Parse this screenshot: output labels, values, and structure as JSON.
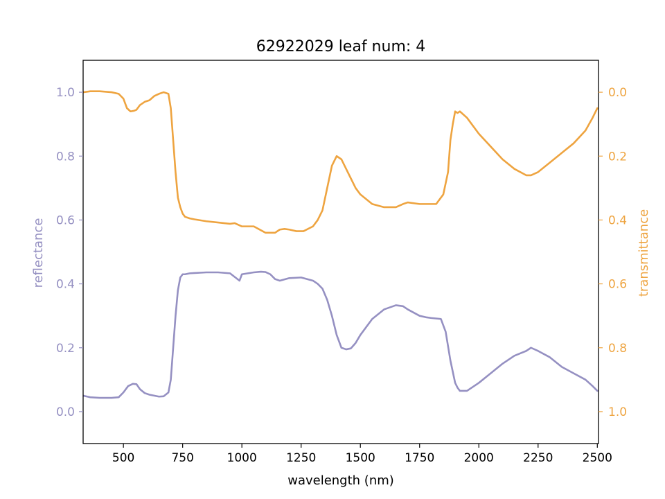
{
  "chart_data": {
    "type": "line",
    "title": "62922029 leaf num: 4",
    "xlabel": "wavelength (nm)",
    "ylabel_left": "reflectance",
    "ylabel_right": "transmittance",
    "xlim": [
      330,
      2505
    ],
    "ylim_left": [
      -0.1,
      1.1
    ],
    "ylim_right": [
      1.1,
      -0.1
    ],
    "xticks": [
      500,
      750,
      1000,
      1250,
      1500,
      1750,
      2000,
      2250,
      2500
    ],
    "yticks_left": [
      0.0,
      0.2,
      0.4,
      0.6,
      0.8,
      1.0
    ],
    "yticks_right": [
      0.0,
      0.2,
      0.4,
      0.6,
      0.8,
      1.0
    ],
    "colors": {
      "reflectance": "#9590c2",
      "transmittance": "#eea440"
    },
    "grid": false,
    "series": [
      {
        "axis": "left",
        "x": [
          330,
          360,
          400,
          450,
          480,
          500,
          520,
          540,
          555,
          570,
          590,
          610,
          630,
          650,
          670,
          690,
          700,
          710,
          720,
          730,
          740,
          750,
          760,
          780,
          800,
          850,
          900,
          950,
          990,
          1000,
          1050,
          1080,
          1100,
          1120,
          1140,
          1160,
          1180,
          1200,
          1250,
          1300,
          1320,
          1340,
          1360,
          1380,
          1400,
          1420,
          1440,
          1460,
          1480,
          1500,
          1550,
          1600,
          1650,
          1680,
          1700,
          1750,
          1780,
          1800,
          1840,
          1860,
          1880,
          1900,
          1910,
          1920,
          1950,
          2000,
          2050,
          2100,
          2150,
          2200,
          2220,
          2250,
          2300,
          2350,
          2400,
          2450,
          2480,
          2500
        ],
        "values": [
          0.05,
          0.045,
          0.043,
          0.043,
          0.045,
          0.06,
          0.08,
          0.087,
          0.086,
          0.07,
          0.058,
          0.053,
          0.05,
          0.047,
          0.048,
          0.06,
          0.1,
          0.2,
          0.3,
          0.38,
          0.42,
          0.43,
          0.43,
          0.433,
          0.434,
          0.436,
          0.436,
          0.433,
          0.41,
          0.43,
          0.436,
          0.438,
          0.437,
          0.43,
          0.415,
          0.41,
          0.414,
          0.418,
          0.42,
          0.41,
          0.4,
          0.385,
          0.35,
          0.3,
          0.24,
          0.2,
          0.195,
          0.198,
          0.215,
          0.24,
          0.29,
          0.32,
          0.333,
          0.33,
          0.32,
          0.3,
          0.295,
          0.293,
          0.29,
          0.25,
          0.16,
          0.09,
          0.075,
          0.065,
          0.065,
          0.09,
          0.12,
          0.15,
          0.175,
          0.19,
          0.2,
          0.19,
          0.17,
          0.14,
          0.12,
          0.1,
          0.08,
          0.065
        ]
      },
      {
        "axis": "right",
        "x": [
          330,
          360,
          400,
          450,
          480,
          500,
          515,
          530,
          545,
          555,
          570,
          590,
          610,
          630,
          650,
          670,
          690,
          700,
          710,
          720,
          730,
          740,
          750,
          760,
          780,
          800,
          850,
          900,
          950,
          970,
          1000,
          1050,
          1100,
          1140,
          1160,
          1180,
          1200,
          1230,
          1260,
          1300,
          1320,
          1340,
          1360,
          1380,
          1400,
          1420,
          1440,
          1460,
          1480,
          1500,
          1550,
          1600,
          1650,
          1680,
          1700,
          1750,
          1780,
          1820,
          1850,
          1870,
          1880,
          1890,
          1900,
          1910,
          1920,
          1950,
          2000,
          2050,
          2100,
          2150,
          2200,
          2220,
          2250,
          2300,
          2350,
          2400,
          2450,
          2480,
          2500
        ],
        "values": [
          0.0,
          -0.003,
          -0.003,
          0.0,
          0.005,
          0.02,
          0.05,
          0.06,
          0.058,
          0.055,
          0.04,
          0.03,
          0.025,
          0.012,
          0.005,
          0.0,
          0.005,
          0.05,
          0.15,
          0.25,
          0.33,
          0.36,
          0.38,
          0.39,
          0.395,
          0.398,
          0.404,
          0.408,
          0.412,
          0.41,
          0.42,
          0.42,
          0.44,
          0.44,
          0.43,
          0.428,
          0.43,
          0.435,
          0.435,
          0.42,
          0.4,
          0.37,
          0.3,
          0.23,
          0.2,
          0.21,
          0.24,
          0.27,
          0.3,
          0.32,
          0.35,
          0.36,
          0.36,
          0.35,
          0.345,
          0.35,
          0.35,
          0.35,
          0.32,
          0.25,
          0.15,
          0.1,
          0.06,
          0.065,
          0.06,
          0.08,
          0.13,
          0.17,
          0.21,
          0.24,
          0.26,
          0.26,
          0.25,
          0.22,
          0.19,
          0.16,
          0.12,
          0.08,
          0.05
        ]
      }
    ]
  }
}
